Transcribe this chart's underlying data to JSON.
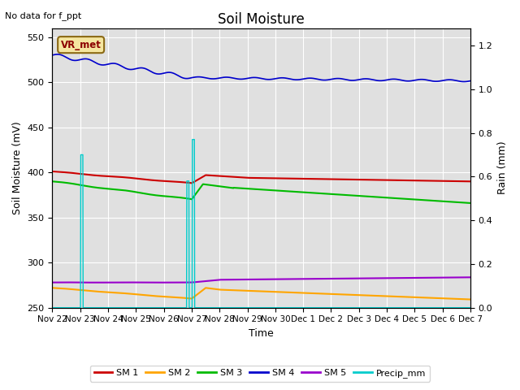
{
  "title": "Soil Moisture",
  "subtitle": "No data for f_ppt",
  "xlabel": "Time",
  "ylabel_left": "Soil Moisture (mV)",
  "ylabel_right": "Rain (mm)",
  "ylim_left": [
    250,
    560
  ],
  "ylim_right": [
    0.0,
    1.28
  ],
  "yticks_left": [
    250,
    300,
    350,
    400,
    450,
    500,
    550
  ],
  "yticks_right": [
    0.0,
    0.2,
    0.4,
    0.6,
    0.8,
    1.0,
    1.2
  ],
  "bg_color": "#e0e0e0",
  "fig_color": "#ffffff",
  "legend_label": "VR_met",
  "series": {
    "SM1": {
      "color": "#cc0000",
      "label": "SM 1"
    },
    "SM2": {
      "color": "#ffa500",
      "label": "SM 2"
    },
    "SM3": {
      "color": "#00bb00",
      "label": "SM 3"
    },
    "SM4": {
      "color": "#0000cc",
      "label": "SM 4"
    },
    "SM5": {
      "color": "#9900cc",
      "label": "SM 5"
    },
    "Precip": {
      "color": "#00cccc",
      "label": "Precip_mm"
    }
  },
  "x_tick_labels": [
    "Nov 22",
    "Nov 23",
    "Nov 24",
    "Nov 25",
    "Nov 26",
    "Nov 27",
    "Nov 28",
    "Nov 29",
    "Nov 30",
    "Dec 1",
    "Dec 2",
    "Dec 3",
    "Dec 4",
    "Dec 5",
    "Dec 6",
    "Dec 7"
  ],
  "precip_spikes": [
    {
      "day": 1.02,
      "rain": 0.7
    },
    {
      "day": 4.82,
      "rain": 0.58
    },
    {
      "day": 5.02,
      "rain": 0.77
    }
  ]
}
